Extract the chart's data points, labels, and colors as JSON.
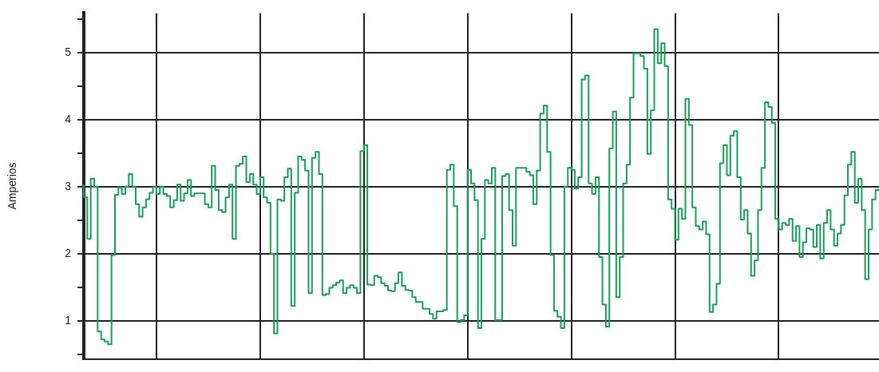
{
  "chart_data": {
    "type": "step",
    "ylabel": "Amperios",
    "categories": [
      null,
      null,
      null,
      null,
      null,
      null,
      null,
      null,
      null,
      null,
      null,
      null,
      null,
      null,
      null,
      null,
      null,
      null,
      null,
      null,
      null,
      null,
      null,
      null,
      null,
      null,
      null,
      null,
      null,
      null,
      null,
      null,
      null,
      null,
      null,
      null,
      null,
      null,
      null,
      null,
      null,
      null,
      null,
      null,
      null,
      null,
      null,
      null,
      null,
      null,
      null,
      null,
      null,
      null,
      null,
      null,
      null,
      null,
      null,
      null,
      null,
      null,
      null,
      null,
      null,
      null,
      null,
      null,
      null,
      null,
      null,
      null,
      null,
      null,
      null,
      null,
      null,
      null,
      null,
      null,
      null,
      null,
      null,
      null,
      null,
      null,
      null,
      null,
      null,
      null,
      null,
      null,
      null,
      null,
      null,
      null,
      null,
      null,
      null,
      null,
      null,
      null,
      null,
      null,
      null,
      null,
      null,
      null,
      null,
      null,
      null,
      null,
      null,
      null,
      null,
      null,
      null,
      null,
      null,
      null,
      null,
      null,
      null,
      null,
      null,
      null,
      null,
      null,
      null,
      null,
      null,
      null,
      null,
      null,
      null,
      null,
      null,
      null,
      null,
      null,
      null,
      null,
      null,
      null,
      null,
      null,
      null,
      null,
      null,
      null,
      null,
      null,
      null,
      null,
      null,
      null,
      null,
      null,
      null,
      null,
      null,
      null,
      null,
      null,
      null,
      null,
      null,
      null,
      null,
      null,
      null,
      null,
      null,
      null,
      null,
      null,
      null,
      null,
      null,
      null,
      null,
      null,
      null,
      null,
      null,
      null,
      null,
      null,
      null,
      null,
      null,
      null,
      null,
      null,
      null,
      null,
      null,
      null,
      null,
      null,
      null,
      null,
      null,
      null,
      null,
      null,
      null,
      null,
      null,
      null,
      null,
      null,
      null,
      null,
      null,
      null,
      null,
      null,
      null,
      null,
      null,
      null,
      null,
      null,
      null,
      null,
      null,
      null,
      null,
      null,
      null
    ],
    "series": [
      {
        "color": "#1a9a5e",
        "values": [
          3.03,
          2.84,
          2.22,
          3.12,
          3.0,
          0.84,
          0.72,
          0.69,
          0.65,
          1.98,
          2.88,
          2.99,
          2.89,
          3.0,
          3.19,
          3.0,
          2.74,
          2.55,
          2.69,
          2.81,
          2.91,
          3.0,
          2.89,
          3.0,
          2.89,
          2.86,
          2.69,
          2.8,
          3.03,
          2.79,
          2.9,
          3.1,
          2.86,
          2.9,
          2.9,
          2.9,
          2.74,
          2.69,
          3.31,
          2.95,
          2.65,
          2.62,
          2.84,
          3.03,
          2.22,
          3.31,
          3.34,
          3.45,
          3.07,
          3.19,
          3.03,
          2.89,
          3.14,
          2.84,
          2.76,
          2.0,
          0.81,
          2.81,
          2.79,
          3.14,
          3.27,
          1.22,
          2.91,
          3.45,
          3.4,
          3.24,
          1.41,
          3.43,
          3.52,
          3.19,
          1.38,
          1.4,
          1.49,
          1.53,
          1.57,
          1.6,
          1.41,
          1.49,
          1.53,
          1.49,
          1.41,
          3.53,
          3.62,
          1.54,
          1.53,
          1.67,
          1.65,
          1.56,
          1.52,
          1.45,
          1.44,
          1.56,
          1.72,
          1.52,
          1.46,
          1.45,
          1.35,
          1.28,
          1.28,
          1.18,
          1.18,
          1.1,
          1.03,
          1.14,
          1.14,
          1.16,
          3.25,
          3.33,
          2.71,
          0.98,
          1.01,
          1.08,
          3.25,
          3.05,
          2.8,
          0.89,
          2.22,
          3.1,
          3.05,
          3.28,
          1.01,
          1.01,
          3.16,
          3.19,
          2.65,
          2.12,
          3.28,
          3.28,
          3.28,
          3.22,
          3.17,
          2.74,
          3.24,
          4.09,
          4.21,
          3.52,
          1.98,
          1.15,
          1.06,
          0.89,
          3.0,
          3.28,
          3.25,
          2.97,
          3.14,
          4.6,
          4.66,
          3.05,
          2.89,
          3.14,
          1.95,
          1.24,
          0.91,
          3.57,
          4.12,
          1.35,
          1.95,
          3.05,
          3.33,
          4.33,
          4.99,
          4.99,
          4.95,
          4.76,
          3.49,
          4.14,
          5.35,
          4.84,
          5.14,
          4.8,
          2.81,
          2.67,
          2.21,
          2.67,
          2.52,
          4.31,
          3.92,
          2.69,
          2.41,
          2.36,
          2.48,
          2.29,
          1.13,
          1.24,
          1.55,
          3.35,
          3.62,
          3.17,
          3.76,
          3.83,
          3.14,
          2.51,
          2.65,
          2.3,
          1.67,
          1.9,
          2.65,
          3.28,
          4.26,
          4.19,
          3.95,
          2.52,
          2.36,
          2.46,
          2.43,
          2.52,
          2.19,
          2.41,
          1.95,
          2.17,
          2.38,
          2.36,
          2.1,
          2.43,
          1.93,
          2.46,
          2.65,
          2.36,
          2.12,
          2.3,
          2.43,
          2.87,
          3.33,
          3.52,
          2.76,
          3.12,
          2.65,
          1.62,
          2.36,
          2.81,
          2.95
        ]
      }
    ],
    "ylim": [
      0.43,
      5.59
    ],
    "yticks": [
      {
        "value": 0.5,
        "label": null
      },
      1,
      {
        "value": 1.5,
        "label": null
      },
      2,
      {
        "value": 2.5,
        "label": null
      },
      3,
      {
        "value": 3.5,
        "label": null
      },
      4,
      {
        "value": 4.5,
        "label": null
      },
      5,
      {
        "value": 5.5,
        "label": null
      }
    ],
    "grid": true,
    "tick_labels": "y"
  }
}
